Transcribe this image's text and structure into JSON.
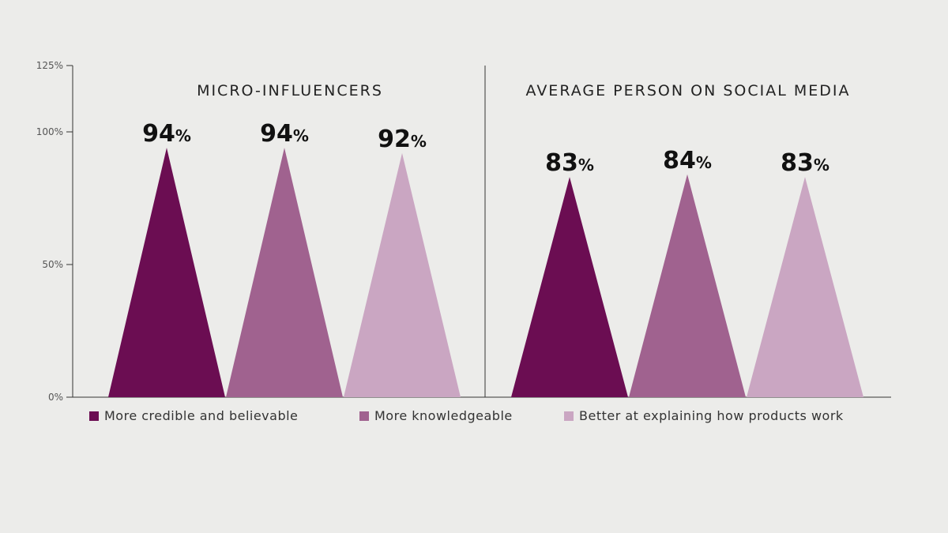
{
  "chart_data": {
    "type": "bar",
    "mark_shape": "triangle",
    "groups": [
      "MICRO-INFLUENCERS",
      "AVERAGE PERSON ON SOCIAL MEDIA"
    ],
    "series": [
      {
        "name": "More credible and believable",
        "color": "#6b0d52",
        "values": [
          94,
          83
        ]
      },
      {
        "name": "More knowledgeable",
        "color": "#a0628f",
        "values": [
          94,
          84
        ]
      },
      {
        "name": "Better at explaining how products work",
        "color": "#caa6c2",
        "values": [
          92,
          83
        ]
      }
    ],
    "value_suffix": "%",
    "ylim": [
      0,
      125
    ],
    "yticks": [
      0,
      50,
      100,
      125
    ],
    "ytick_labels": [
      "0%",
      "50%",
      "100%",
      "125%"
    ],
    "grid": false,
    "legend": "bottom"
  }
}
